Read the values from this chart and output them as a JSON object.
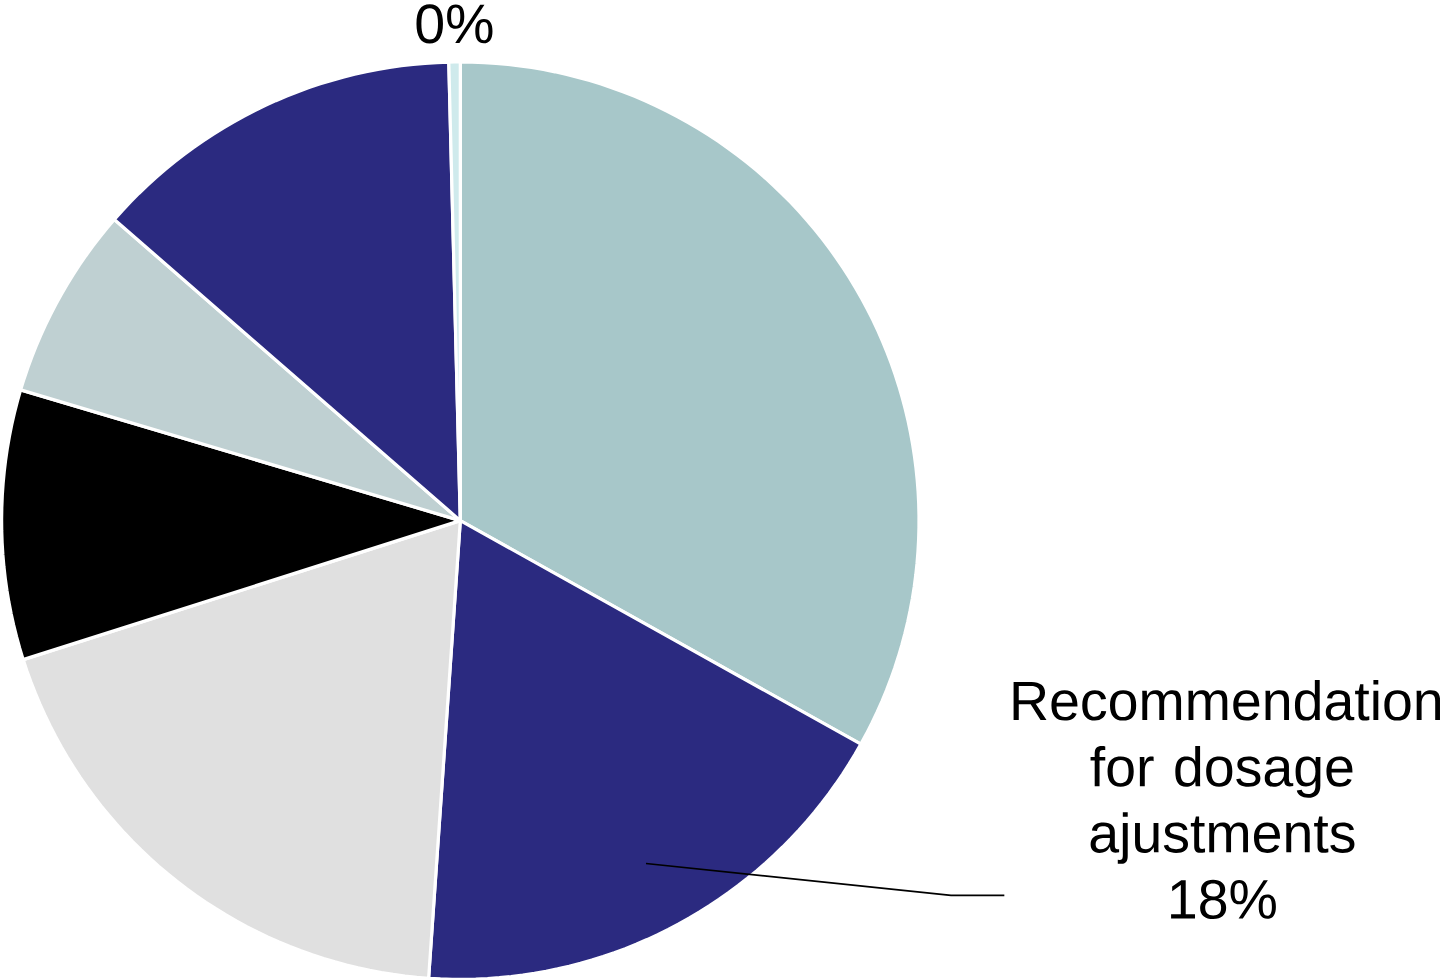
{
  "chart_data": {
    "type": "pie",
    "categories": [
      null,
      "Recommendation for dosage ajustments",
      null,
      null,
      null,
      null,
      null
    ],
    "values": [
      33.1,
      18,
      19,
      9.5,
      6.8,
      13.2,
      0.4
    ],
    "value_labels": [
      null,
      "18%",
      null,
      null,
      null,
      null,
      "0%"
    ],
    "colors": [
      "#a7c7c9",
      "#2b2a80",
      "#e0e0e0",
      "#000000",
      "#bfd0d2",
      "#2b2a80",
      "#cfeaec"
    ]
  }
}
